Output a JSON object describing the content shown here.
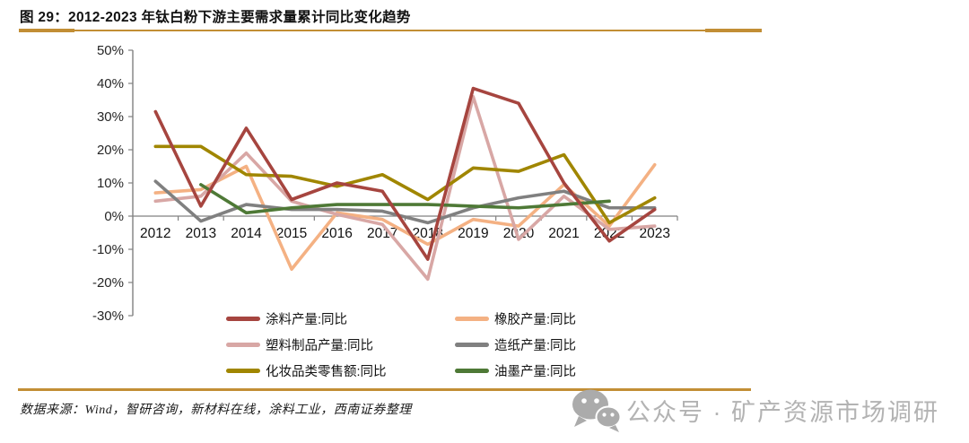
{
  "figure": {
    "title": "图 29：2012-2023 年钛白粉下游主要需求量累计同比变化趋势",
    "source_note": "数据来源：Wind，智研咨询，新材料在线，涂料工业，西南证券整理",
    "watermark_text": "公众号 · 矿产资源市场调研",
    "accent_rule_color": "#C28E35",
    "watermark_color": "#b3b3b3"
  },
  "chart_data": {
    "type": "line",
    "x": [
      "2012",
      "2013",
      "2014",
      "2015",
      "2016",
      "2017",
      "2018",
      "2019",
      "2020",
      "2021",
      "2022",
      "2023"
    ],
    "series": [
      {
        "name": "涂料产量:同比",
        "color": "#A6453F",
        "values": [
          31.5,
          3,
          26.5,
          5,
          10,
          7.5,
          -13,
          38.5,
          34,
          10,
          -7.5,
          2
        ]
      },
      {
        "name": "橡胶产量:同比",
        "color": "#F4B183",
        "values": [
          7,
          8,
          15,
          -16,
          1,
          -1,
          -8.5,
          -1,
          -3,
          9.5,
          -3,
          15.5
        ]
      },
      {
        "name": "塑料制品产量:同比",
        "color": "#D8A7A5",
        "values": [
          4.5,
          6,
          19,
          4.5,
          0.5,
          -2.5,
          -19,
          36,
          -7,
          6,
          -4,
          -3
        ]
      },
      {
        "name": "造纸产量:同比",
        "color": "#808080",
        "values": [
          10.5,
          -1.5,
          3.5,
          2,
          2,
          1.5,
          -2,
          2.5,
          5.5,
          7.5,
          2.5,
          2.5
        ]
      },
      {
        "name": "化妆品类零售额:同比",
        "color": "#A08600",
        "values": [
          21,
          21,
          12.5,
          12,
          9,
          12.5,
          5,
          14.5,
          13.5,
          18.5,
          -2,
          5.5
        ]
      },
      {
        "name": "油墨产量:同比",
        "color": "#4E7936",
        "values": [
          null,
          9.5,
          1,
          2.5,
          3.5,
          3.5,
          3.5,
          3,
          2.5,
          3.5,
          4.5,
          null
        ]
      }
    ],
    "ylim": [
      -30,
      50
    ],
    "ytick_step": 10,
    "ytick_suffix": "%",
    "grid": false,
    "legend_position": "bottom",
    "axis_color": "#808080",
    "tick_label_color": "#262626"
  }
}
